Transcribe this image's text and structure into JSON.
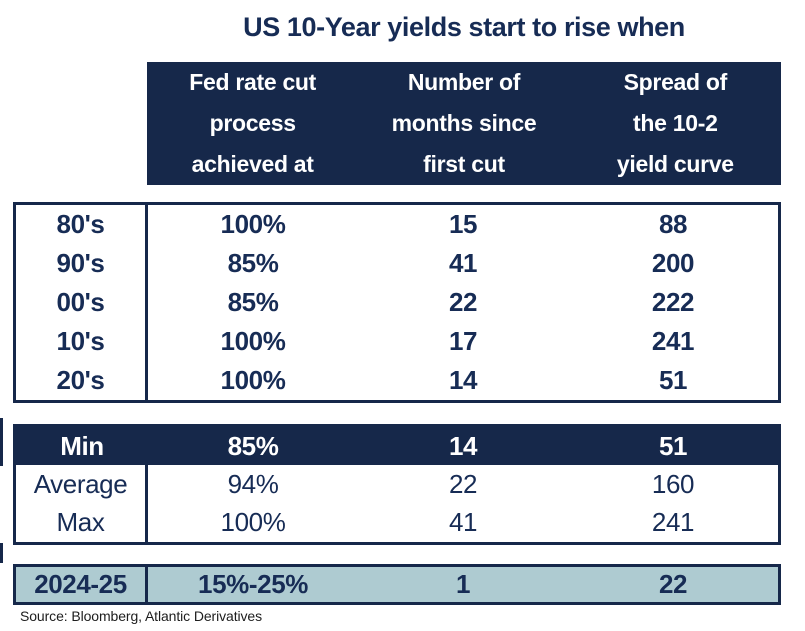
{
  "colors": {
    "navy": "#16284a",
    "text_navy": "#172c55",
    "light_blue": "#aecbd1",
    "source_text": "#1d1d1d",
    "header_text": "#ffffff"
  },
  "chart_data": {
    "type": "table",
    "title": "US 10-Year yields start to rise when",
    "columns": [
      {
        "label": "Fed rate cut process achieved at",
        "lines": [
          "Fed rate cut",
          "process",
          "achieved at"
        ]
      },
      {
        "label": "Number of months since first cut",
        "lines": [
          "Number of",
          "months since",
          "first cut"
        ]
      },
      {
        "label": "Spread of the 10-2 yield curve",
        "lines": [
          "Spread of",
          "the 10-2",
          "yield curve"
        ]
      }
    ],
    "decades": [
      {
        "label": "80's",
        "values": [
          "100%",
          "15",
          "88"
        ]
      },
      {
        "label": "90's",
        "values": [
          "85%",
          "41",
          "200"
        ]
      },
      {
        "label": "00's",
        "values": [
          "85%",
          "22",
          "222"
        ]
      },
      {
        "label": "10's",
        "values": [
          "100%",
          "17",
          "241"
        ]
      },
      {
        "label": "20's",
        "values": [
          "100%",
          "14",
          "51"
        ]
      }
    ],
    "summary": [
      {
        "label": "Min",
        "values": [
          "85%",
          "14",
          "51"
        ]
      },
      {
        "label": "Average",
        "values": [
          "94%",
          "22",
          "160"
        ]
      },
      {
        "label": "Max",
        "values": [
          "100%",
          "41",
          "241"
        ]
      }
    ],
    "current": {
      "label": "2024-25",
      "values": [
        "15%-25%",
        "1",
        "22"
      ]
    },
    "source": "Source: Bloomberg, Atlantic Derivatives"
  }
}
